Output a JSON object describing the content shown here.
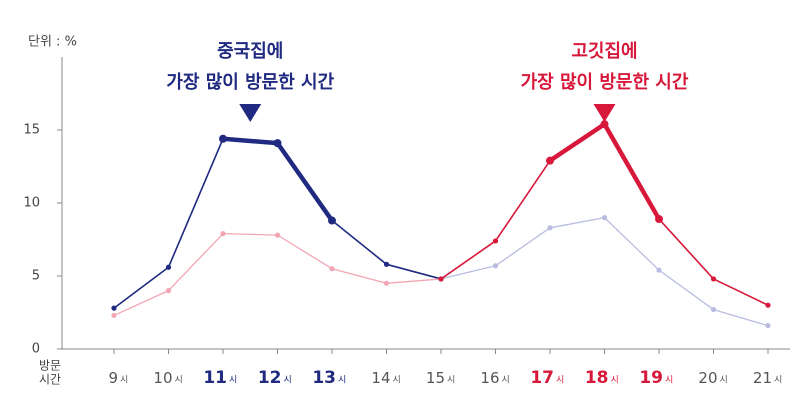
{
  "chart_data": {
    "type": "line",
    "unit_label": "단위 : %",
    "x_label": [
      "방문",
      "시간"
    ],
    "categories": [
      "9",
      "10",
      "11",
      "12",
      "13",
      "14",
      "15",
      "16",
      "17",
      "18",
      "19",
      "20",
      "21"
    ],
    "x_suffix": "시",
    "category_colors": [
      "#555555",
      "#555555",
      "#1f2a80",
      "#1f2a80",
      "#1f2a80",
      "#555555",
      "#555555",
      "#555555",
      "#d8183a",
      "#d8183a",
      "#d8183a",
      "#555555",
      "#555555"
    ],
    "ylim": [
      0,
      20
    ],
    "yticks": [
      0,
      5,
      10,
      15
    ],
    "series": [
      {
        "color": "#1f2a80",
        "muted_color": "#b8bde0",
        "strong_range": [
          0,
          6
        ],
        "thick_range": [
          2,
          4
        ],
        "values": [
          2.8,
          5.6,
          14.4,
          14.1,
          8.8,
          5.8,
          4.8,
          5.7,
          8.3,
          9.0,
          5.4,
          2.7,
          1.6
        ]
      },
      {
        "color": "#d8183a",
        "muted_color": "#f2a6b3",
        "strong_range": [
          6,
          12
        ],
        "thick_range": [
          8,
          10
        ],
        "values": [
          2.3,
          4.0,
          7.9,
          7.8,
          5.5,
          4.5,
          4.8,
          7.4,
          12.9,
          15.4,
          8.9,
          4.8,
          3.0
        ]
      }
    ],
    "annotations": [
      {
        "lines": [
          "중국집에",
          "가장 많이 방문한 시간"
        ],
        "color": "#1f2a80",
        "at": 2.5
      },
      {
        "lines": [
          "고깃집에",
          "가장 많이 방문한 시간"
        ],
        "color": "#d8183a",
        "at": 9
      }
    ]
  }
}
